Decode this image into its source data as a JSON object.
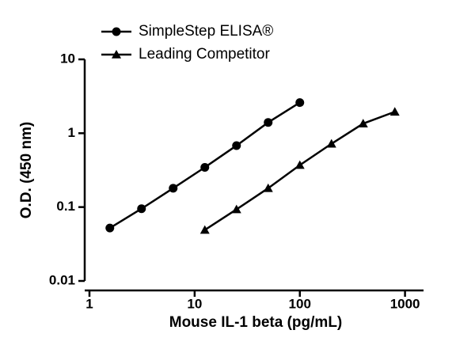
{
  "chart_data": {
    "type": "line",
    "x_label": "Mouse IL-1 beta (pg/mL)",
    "y_label": "O.D. (450 nm)",
    "xscale": "log",
    "yscale": "log",
    "xlim": [
      1,
      1500
    ],
    "ylim": [
      0.01,
      10
    ],
    "xticks": [
      1,
      10,
      100,
      1000
    ],
    "yticks": [
      0.01,
      0.1,
      1,
      10
    ],
    "legend": "top-left",
    "series": [
      {
        "name": "SimpleStep ELISA®",
        "color": "#000000",
        "marker": "circle",
        "x": [
          1.5625,
          3.125,
          6.25,
          12.5,
          25,
          50,
          100
        ],
        "values": [
          0.052,
          0.095,
          0.18,
          0.345,
          0.68,
          1.4,
          2.6
        ]
      },
      {
        "name": "Leading Competitor",
        "color": "#000000",
        "marker": "triangle",
        "x": [
          12.5,
          25,
          50,
          100,
          200,
          400,
          800
        ],
        "values": [
          0.049,
          0.093,
          0.18,
          0.37,
          0.72,
          1.35,
          1.95
        ]
      }
    ]
  }
}
